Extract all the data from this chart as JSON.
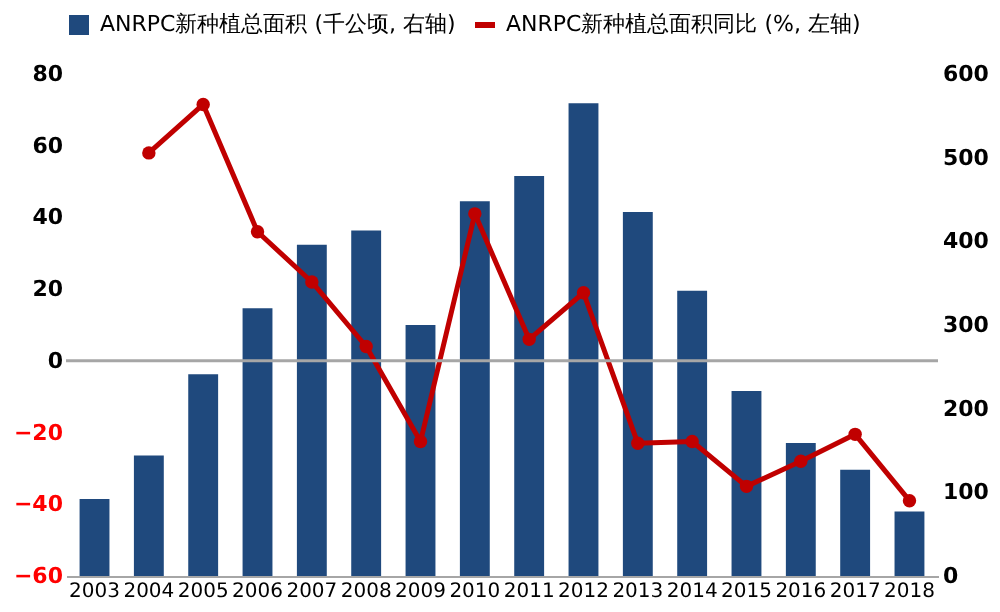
{
  "chart_data": {
    "type": "bar",
    "categories": [
      "2003",
      "2004",
      "2005",
      "2006",
      "2007",
      "2008",
      "2009",
      "2010",
      "2011",
      "2012",
      "2013",
      "2014",
      "2015",
      "2016",
      "2017",
      "2018"
    ],
    "series": [
      {
        "name": "ANRPC新种植总面积 (千公顷, 右轴)",
        "axis": "y2",
        "color": "#1f497d",
        "values": [
          92,
          144,
          241,
          320,
          396,
          413,
          300,
          448,
          478,
          565,
          435,
          341,
          221,
          159,
          127,
          77
        ]
      },
      {
        "name": "ANRPC新种植总面积同比 (%, 左轴)",
        "type": "line",
        "color": "#c00000",
        "marker": "circle",
        "values": [
          null,
          58,
          71.5,
          36,
          22,
          4,
          -22.5,
          41,
          6,
          19,
          -23,
          -22.5,
          -35,
          -28,
          -20.5,
          -39
        ]
      }
    ],
    "ylim": [
      -60,
      80
    ],
    "yticks": [
      -60,
      -40,
      -20,
      0,
      20,
      40,
      60,
      80
    ],
    "y2lim": [
      0,
      600
    ],
    "y2ticks": [
      0,
      100,
      200,
      300,
      400,
      500,
      600
    ],
    "ref_lines": [
      {
        "axis": "y",
        "value": 0,
        "color": "#a6a6a6"
      }
    ],
    "legend": "top",
    "grid": false
  }
}
